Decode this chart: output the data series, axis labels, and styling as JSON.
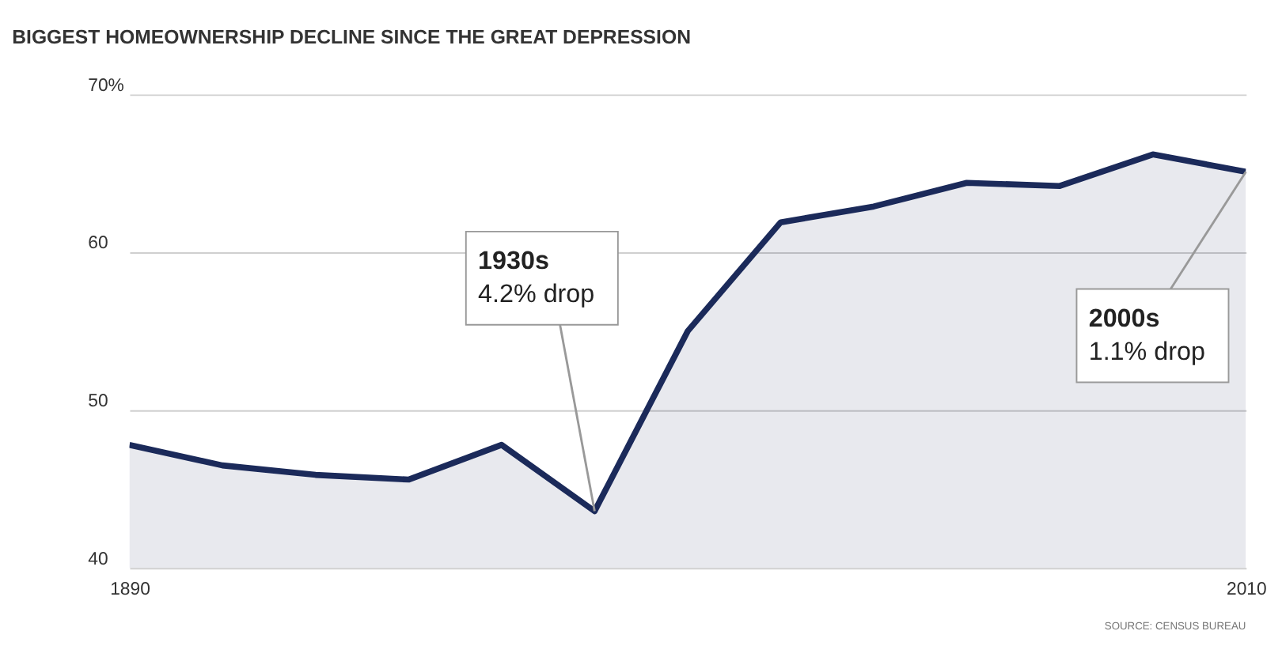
{
  "chart_data": {
    "type": "area",
    "title": "BIGGEST HOMEOWNERSHIP DECLINE SINCE THE GREAT DEPRESSION",
    "x": [
      1890,
      1900,
      1910,
      1920,
      1930,
      1940,
      1950,
      1960,
      1970,
      1980,
      1990,
      2000,
      2010
    ],
    "series": [
      {
        "color": "#1b2a5a",
        "values": [
          47.8,
          46.5,
          45.9,
          45.6,
          47.8,
          43.6,
          55.0,
          61.9,
          62.9,
          64.4,
          64.2,
          66.2,
          65.1
        ]
      }
    ],
    "xlim": [
      1890,
      2010
    ],
    "xticks": [
      1890,
      2010
    ],
    "ylim": [
      40,
      70
    ],
    "yticks": [
      40,
      50,
      60,
      {
        "value": 70,
        "label": "70%"
      }
    ],
    "grid": "y",
    "annotations": [
      {
        "text": "1930s\n4.2% drop",
        "x": 1940,
        "y": 43.6
      },
      {
        "text": "2000s\n1.1% drop",
        "x": 2010,
        "y": 65.1
      },
      "SOURCE: CENSUS BUREAU"
    ]
  }
}
